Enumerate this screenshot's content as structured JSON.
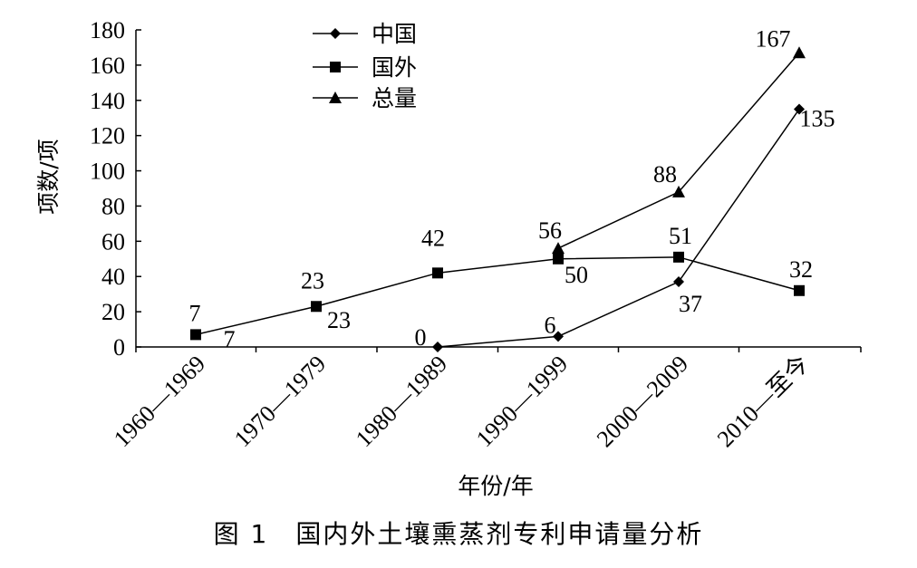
{
  "caption": "图 1　国内外土壤熏蒸剂专利申请量分析",
  "chart_data": {
    "type": "line",
    "title": "",
    "xlabel": "年份/年",
    "ylabel": "项数/项",
    "categories": [
      "1960—1969",
      "1970—1979",
      "1980—1989",
      "1990—1999",
      "2000—2009",
      "2010—至今"
    ],
    "ylim": [
      0,
      180
    ],
    "yticks": [
      0,
      20,
      40,
      60,
      80,
      100,
      120,
      140,
      160,
      180
    ],
    "grid": false,
    "legend_position": "top-left",
    "series": [
      {
        "name": "中国",
        "marker": "diamond",
        "values": [
          null,
          null,
          0,
          6,
          37,
          135
        ],
        "labels": [
          "7",
          "23",
          "0",
          "6",
          "37",
          "135"
        ]
      },
      {
        "name": "国外",
        "marker": "square",
        "values": [
          7,
          23,
          42,
          50,
          51,
          32
        ],
        "labels": [
          "7",
          "23",
          "42",
          "50",
          "51",
          "32"
        ]
      },
      {
        "name": "总量",
        "marker": "triangle",
        "values": [
          null,
          null,
          null,
          56,
          88,
          167
        ],
        "labels": [
          "",
          "",
          "",
          "56",
          "88",
          "167"
        ]
      }
    ],
    "color": "#000000"
  }
}
